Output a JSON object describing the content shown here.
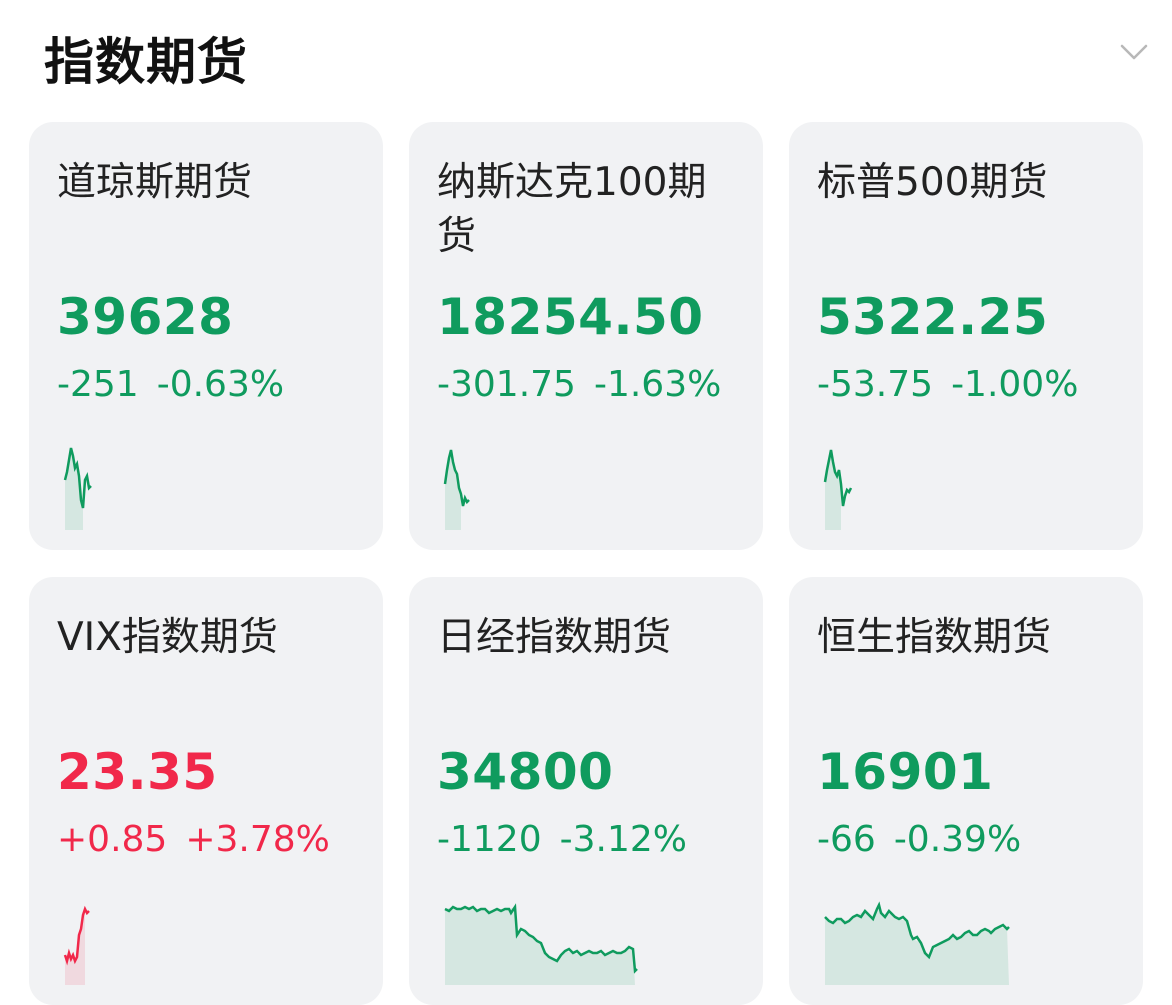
{
  "header": {
    "title": "指数期货",
    "expand_icon": "chevron-down-icon"
  },
  "colors": {
    "down": "#0f9b5e",
    "up": "#f1284a",
    "card_bg": "#f1f2f4"
  },
  "cards": [
    {
      "name": "道琼斯期货",
      "price": "39628",
      "change": "-251",
      "percent": "-0.63%",
      "trend": "down"
    },
    {
      "name": "纳斯达克100期货",
      "price": "18254.50",
      "change": "-301.75",
      "percent": "-1.63%",
      "trend": "down"
    },
    {
      "name": "标普500期货",
      "price": "5322.25",
      "change": "-53.75",
      "percent": "-1.00%",
      "trend": "down"
    },
    {
      "name": "VIX指数期货",
      "price": "23.35",
      "change": "+0.85",
      "percent": "+3.78%",
      "trend": "up"
    },
    {
      "name": "日经指数期货",
      "price": "34800",
      "change": "-1120",
      "percent": "-3.12%",
      "trend": "down"
    },
    {
      "name": "恒生指数期货",
      "price": "16901",
      "change": "-66",
      "percent": "-0.39%",
      "trend": "down"
    }
  ]
}
